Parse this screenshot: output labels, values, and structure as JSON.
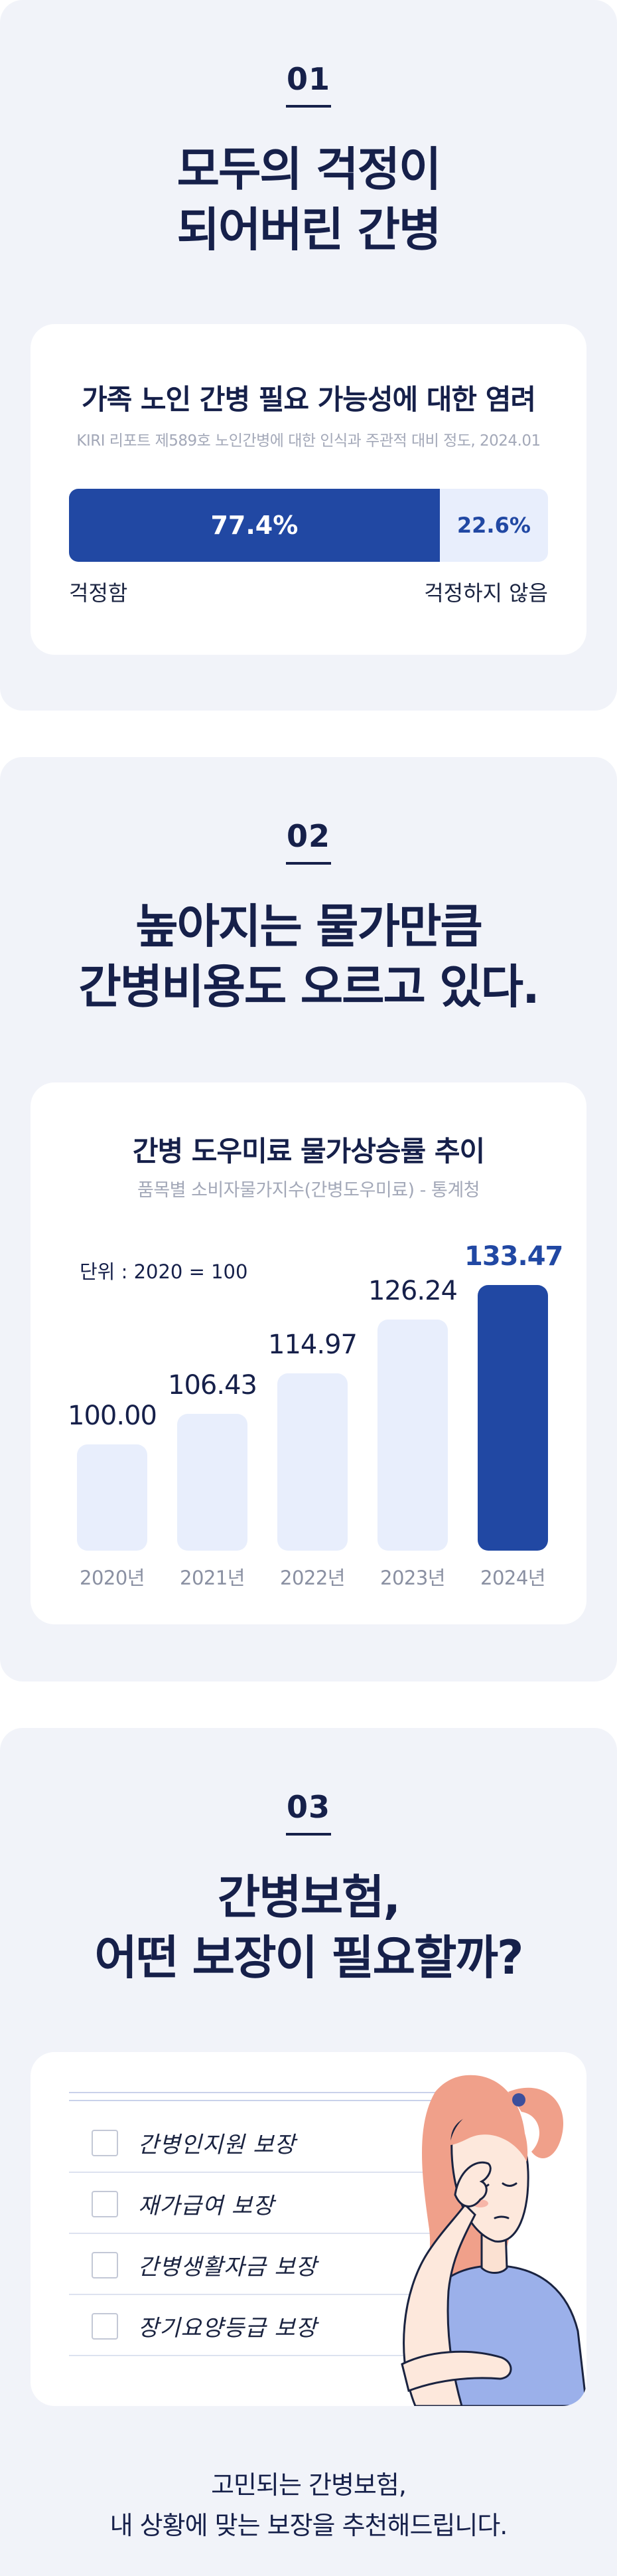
{
  "section1": {
    "number": "01",
    "headline_line1": "모두의 걱정이",
    "headline_line2": "되어버린 간병",
    "card": {
      "title": "가족 노인 간병 필요 가능성에 대한 염려",
      "source": "KIRI 리포트 제589호 노인간병에 대한 인식과 주관적 대비 정도, 2024.01",
      "worried_value": "77.4%",
      "not_worried_value": "22.6%",
      "worried_fraction": 0.774,
      "worried_label": "걱정함",
      "not_worried_label": "걱정하지 않음"
    }
  },
  "section2": {
    "number": "02",
    "headline_line1": "높아지는 물가만큼",
    "headline_line2": "간병비용도 오르고 있다.",
    "card": {
      "title": "간병 도우미료 물가상승률 추이",
      "source": "품목별 소비자물가지수(간병도우미료) - 통계청",
      "unit": "단위 : 2020 = 100"
    }
  },
  "chart_data": {
    "type": "bar",
    "title": "간병 도우미료 물가상승률 추이",
    "categories": [
      "2020년",
      "2021년",
      "2022년",
      "2023년",
      "2024년"
    ],
    "values": [
      100.0,
      106.43,
      114.97,
      126.24,
      133.47
    ],
    "value_labels": [
      "100.00",
      "106.43",
      "114.97",
      "126.24",
      "133.47"
    ],
    "highlight_index": 4,
    "colors": {
      "normal": "#e8eefc",
      "highlight": "#2148a3"
    }
  },
  "section3": {
    "number": "03",
    "headline_line1": "간병보험,",
    "headline_line2": "어떤 보장이 필요할까?",
    "checklist": [
      "간병인지원 보장",
      "재가급여 보장",
      "간병생활자금 보장",
      "장기요양등급 보장"
    ],
    "footer_line1": "고민되는 간병보험,",
    "footer_line2": "내 상황에 맞는 보장을 추천해드립니다."
  },
  "colors": {
    "navy": "#16204a",
    "accent_blue": "#2148a3",
    "light_blue": "#e8eefc",
    "highlight_yellow": "#f6d90f",
    "panel_bg": "#f1f3f9"
  },
  "illustration": "worried-woman-icon"
}
